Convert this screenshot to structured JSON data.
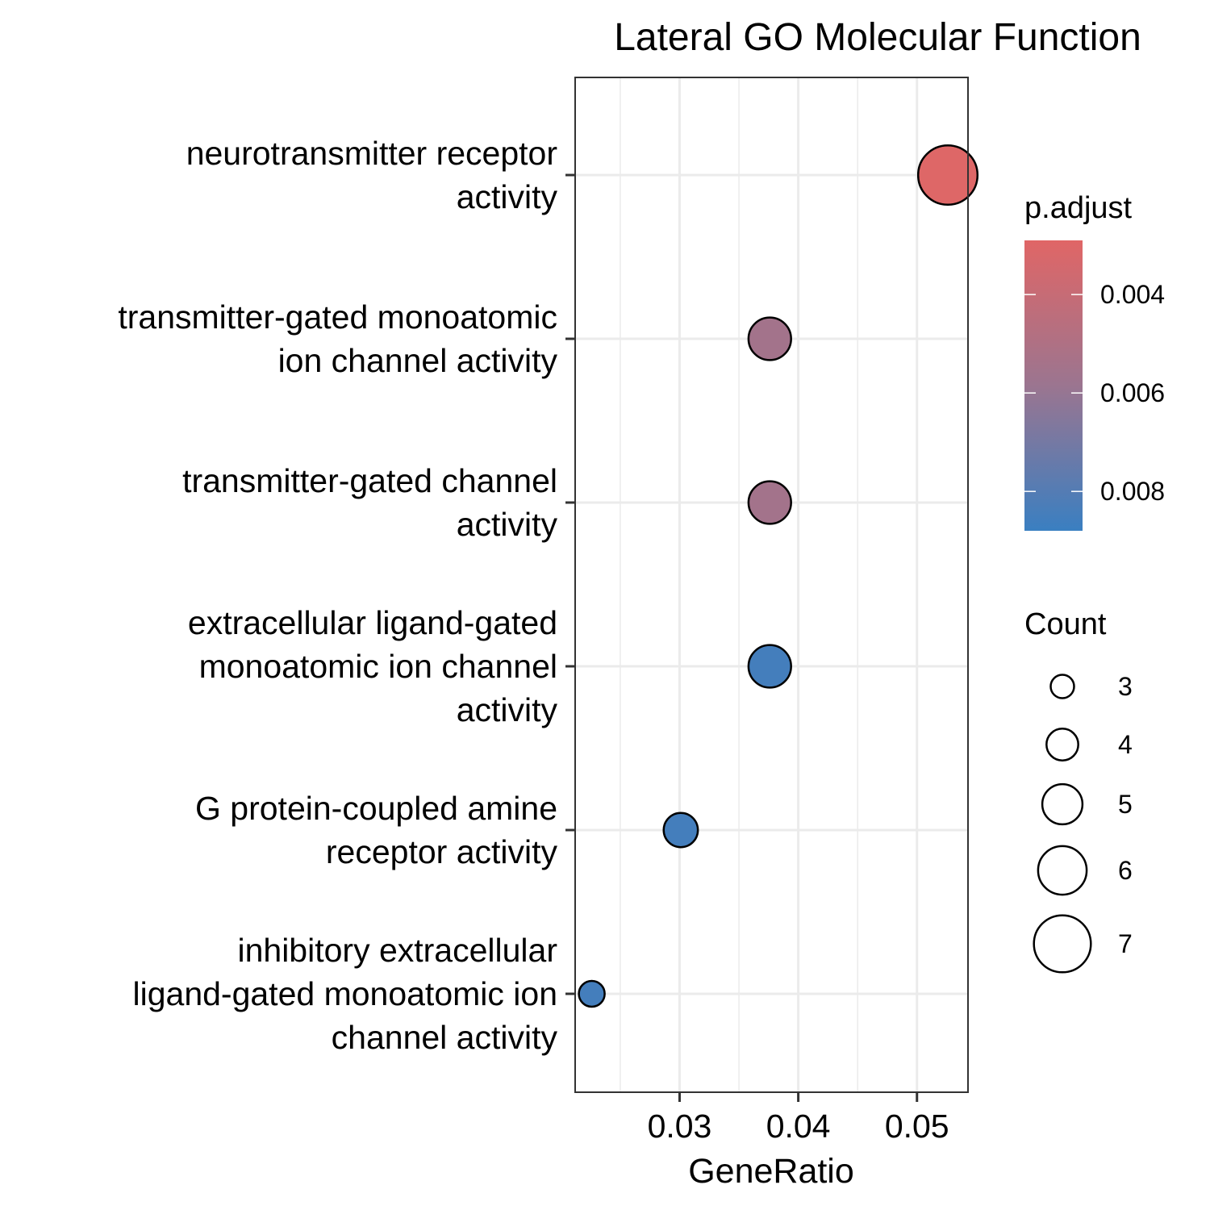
{
  "chart_data": {
    "type": "scatter",
    "title": "Lateral GO Molecular Function",
    "xlabel": "GeneRatio",
    "ylabel": "",
    "xlim": [
      0.0212,
      0.0543
    ],
    "xticks": [
      0.03,
      0.04,
      0.05
    ],
    "xtick_labels": [
      "0.03",
      "0.04",
      "0.05"
    ],
    "grid": true,
    "categories": [
      [
        "neurotransmitter receptor",
        "activity"
      ],
      [
        "transmitter-gated monoatomic",
        "ion channel activity"
      ],
      [
        "transmitter-gated channel",
        "activity"
      ],
      [
        "extracellular ligand-gated",
        "monoatomic ion channel",
        "activity"
      ],
      [
        "G protein-coupled amine",
        "receptor activity"
      ],
      [
        "inhibitory extracellular",
        "ligand-gated monoatomic ion",
        "channel activity"
      ]
    ],
    "points": [
      {
        "x": 0.0526,
        "count": 7,
        "p_adjust": 0.003
      },
      {
        "x": 0.0376,
        "count": 5,
        "p_adjust": 0.0055
      },
      {
        "x": 0.0376,
        "count": 5,
        "p_adjust": 0.0055
      },
      {
        "x": 0.0376,
        "count": 5,
        "p_adjust": 0.0085
      },
      {
        "x": 0.0301,
        "count": 4,
        "p_adjust": 0.0085
      },
      {
        "x": 0.0226,
        "count": 3,
        "p_adjust": 0.0085
      }
    ],
    "color_legend": {
      "title": "p.adjust",
      "range": [
        0.0029,
        0.0088
      ],
      "low_color": "#E06666",
      "high_color": "#3A7FC1",
      "mid_color": "#9B7590",
      "breaks": [
        0.004,
        0.006,
        0.008
      ],
      "break_labels": [
        "0.004",
        "0.006",
        "0.008"
      ]
    },
    "size_legend": {
      "title": "Count",
      "values": [
        3,
        4,
        5,
        6,
        7
      ],
      "labels": [
        "3",
        "4",
        "5",
        "6",
        "7"
      ]
    },
    "legend_placement": "right"
  }
}
